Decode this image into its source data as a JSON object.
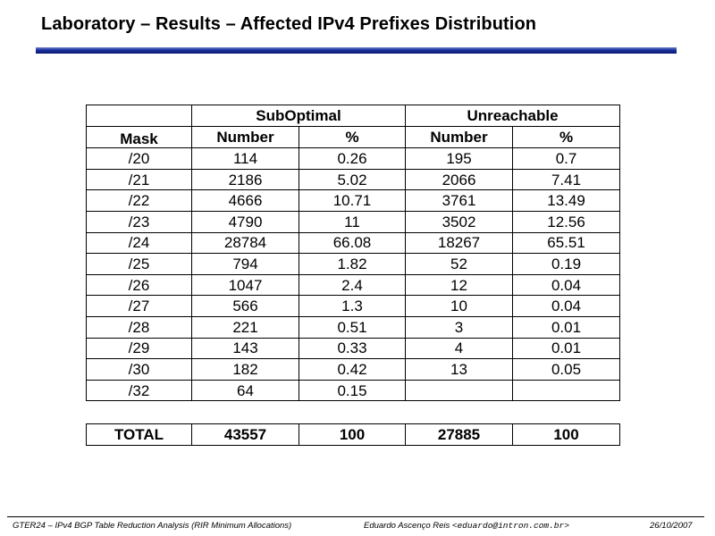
{
  "slide": {
    "title": "Laboratory – Results – Affected IPv4 Prefixes Distribution"
  },
  "table": {
    "mask_header": "Mask",
    "group_headers": [
      "SubOptimal",
      "Unreachable"
    ],
    "sub_headers": [
      "Number",
      "%",
      "Number",
      "%"
    ],
    "rows": [
      [
        "/20",
        "114",
        "0.26",
        "195",
        "0.7"
      ],
      [
        "/21",
        "2186",
        "5.02",
        "2066",
        "7.41"
      ],
      [
        "/22",
        "4666",
        "10.71",
        "3761",
        "13.49"
      ],
      [
        "/23",
        "4790",
        "11",
        "3502",
        "12.56"
      ],
      [
        "/24",
        "28784",
        "66.08",
        "18267",
        "65.51"
      ],
      [
        "/25",
        "794",
        "1.82",
        "52",
        "0.19"
      ],
      [
        "/26",
        "1047",
        "2.4",
        "12",
        "0.04"
      ],
      [
        "/27",
        "566",
        "1.3",
        "10",
        "0.04"
      ],
      [
        "/28",
        "221",
        "0.51",
        "3",
        "0.01"
      ],
      [
        "/29",
        "143",
        "0.33",
        "4",
        "0.01"
      ],
      [
        "/30",
        "182",
        "0.42",
        "13",
        "0.05"
      ],
      [
        "/32",
        "64",
        "0.15",
        "",
        ""
      ]
    ],
    "total": [
      "TOTAL",
      "43557",
      "100",
      "27885",
      "100"
    ]
  },
  "footer": {
    "left": "GTER24 – IPv4 BGP Table Reduction Analysis (RIR Minimum Allocations)",
    "author": "Eduardo Ascenço Reis <",
    "email": "eduardo@intron.com.br",
    "author_end": ">",
    "date": "26/10/2007"
  }
}
